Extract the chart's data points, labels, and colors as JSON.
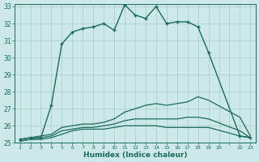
{
  "xlabel": "Humidex (Indice chaleur)",
  "bg_color": "#cce8e8",
  "grid_color": "#aacccc",
  "line_color": "#1a6b5a",
  "xlim": [
    1,
    23
  ],
  "ylim": [
    25,
    33
  ],
  "yticks": [
    25,
    26,
    27,
    28,
    29,
    30,
    31,
    32,
    33
  ],
  "xtick_labels": [
    "1",
    "2",
    "3",
    "4",
    "5",
    "6",
    "7",
    "8",
    "9",
    "10",
    "11",
    "12",
    "13",
    "14",
    "15",
    "16",
    "17",
    "18",
    "19",
    "20",
    "",
    "22",
    "23"
  ],
  "xtick_positions": [
    1,
    2,
    3,
    4,
    5,
    6,
    7,
    8,
    9,
    10,
    11,
    12,
    13,
    14,
    15,
    16,
    17,
    18,
    19,
    20,
    21,
    22,
    23
  ],
  "series": [
    {
      "x": [
        1,
        2,
        3,
        4,
        5,
        6,
        7,
        8,
        9,
        10,
        11,
        12,
        13,
        14,
        15,
        16,
        17,
        18,
        19,
        22,
        23
      ],
      "y": [
        25.2,
        25.3,
        25.3,
        27.2,
        30.8,
        31.5,
        31.7,
        31.8,
        32.0,
        31.6,
        33.1,
        32.5,
        32.3,
        33.0,
        32.0,
        32.1,
        32.1,
        31.8,
        30.3,
        25.4,
        25.3
      ],
      "marker": true,
      "lw": 1.0
    },
    {
      "x": [
        1,
        2,
        3,
        4,
        5,
        6,
        7,
        8,
        9,
        10,
        11,
        12,
        13,
        14,
        15,
        16,
        17,
        18,
        19,
        22,
        23
      ],
      "y": [
        25.2,
        25.3,
        25.4,
        25.5,
        25.9,
        26.0,
        26.1,
        26.1,
        26.2,
        26.4,
        26.8,
        27.0,
        27.2,
        27.3,
        27.2,
        27.3,
        27.4,
        27.7,
        27.5,
        26.5,
        25.4
      ],
      "marker": false,
      "lw": 0.9
    },
    {
      "x": [
        1,
        2,
        3,
        4,
        5,
        6,
        7,
        8,
        9,
        10,
        11,
        12,
        13,
        14,
        15,
        16,
        17,
        18,
        19,
        22,
        23
      ],
      "y": [
        25.1,
        25.2,
        25.3,
        25.4,
        25.7,
        25.8,
        25.9,
        25.9,
        26.0,
        26.1,
        26.3,
        26.4,
        26.4,
        26.4,
        26.4,
        26.4,
        26.5,
        26.5,
        26.4,
        25.7,
        25.3
      ],
      "marker": false,
      "lw": 0.9
    },
    {
      "x": [
        1,
        2,
        3,
        4,
        5,
        6,
        7,
        8,
        9,
        10,
        11,
        12,
        13,
        14,
        15,
        16,
        17,
        18,
        19,
        22,
        23
      ],
      "y": [
        25.1,
        25.2,
        25.2,
        25.3,
        25.5,
        25.7,
        25.8,
        25.8,
        25.8,
        25.9,
        26.0,
        26.0,
        26.0,
        26.0,
        25.9,
        25.9,
        25.9,
        25.9,
        25.9,
        25.4,
        25.3
      ],
      "marker": false,
      "lw": 0.9
    }
  ]
}
